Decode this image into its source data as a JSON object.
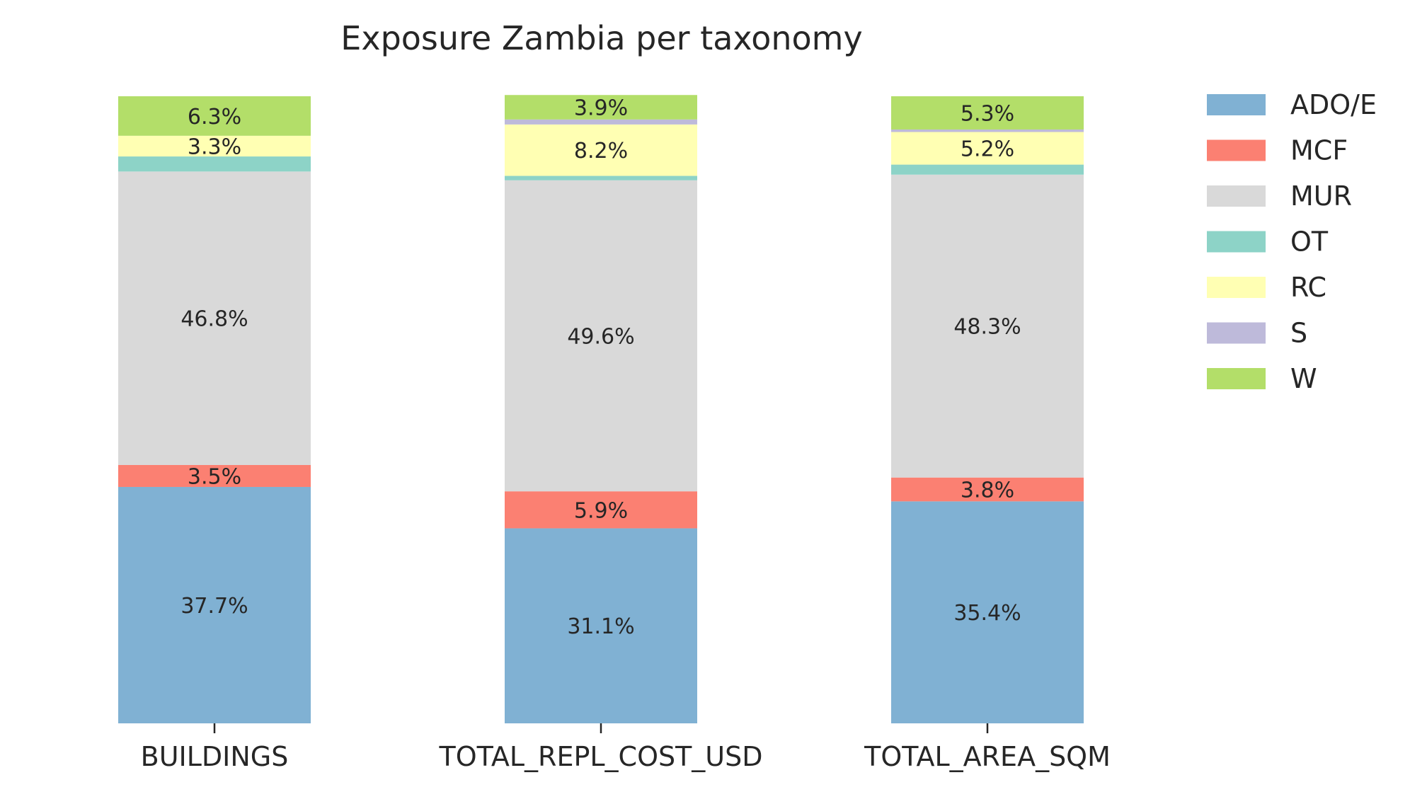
{
  "chart_data": {
    "type": "bar",
    "stacked": true,
    "normalized": true,
    "title": "Exposure Zambia per taxonomy",
    "xlabel": "",
    "ylabel": "",
    "categories": [
      "BUILDINGS",
      "TOTAL_REPL_COST_USD",
      "TOTAL_AREA_SQM"
    ],
    "ylim": [
      0,
      100
    ],
    "legend_position": "right",
    "grid": false,
    "series": [
      {
        "name": "ADO/E",
        "color": "#80b1d3",
        "values": [
          37.7,
          31.1,
          35.4
        ]
      },
      {
        "name": "MCF",
        "color": "#fb8072",
        "values": [
          3.5,
          5.9,
          3.8
        ]
      },
      {
        "name": "MUR",
        "color": "#d9d9d9",
        "values": [
          46.8,
          49.6,
          48.3
        ]
      },
      {
        "name": "OT",
        "color": "#8dd3c7",
        "values": [
          2.4,
          0.7,
          1.6
        ]
      },
      {
        "name": "RC",
        "color": "#ffffb3",
        "values": [
          3.3,
          8.2,
          5.2
        ]
      },
      {
        "name": "S",
        "color": "#bebada",
        "values": [
          0.0,
          0.8,
          0.4
        ]
      },
      {
        "name": "W",
        "color": "#b3de69",
        "values": [
          6.3,
          3.9,
          5.3
        ]
      }
    ],
    "data_labels": [
      [
        "37.7%",
        "31.1%",
        "35.4%"
      ],
      [
        "3.5%",
        "5.9%",
        "3.8%"
      ],
      [
        "46.8%",
        "49.6%",
        "48.3%"
      ],
      [
        "",
        "",
        ""
      ],
      [
        "3.3%",
        "8.2%",
        "5.2%"
      ],
      [
        "",
        "",
        ""
      ],
      [
        "6.3%",
        "3.9%",
        "5.3%"
      ]
    ]
  }
}
